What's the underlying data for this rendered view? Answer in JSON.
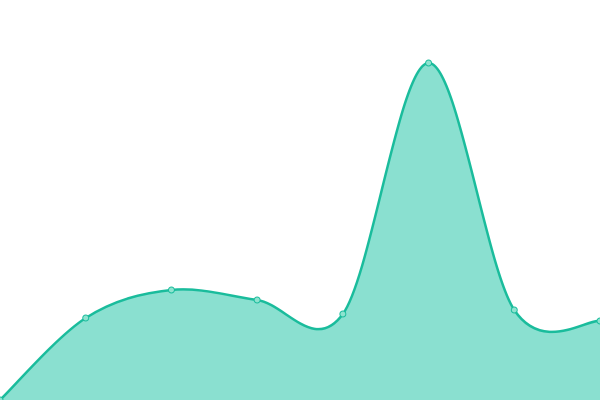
{
  "chart_data": {
    "type": "area",
    "x": [
      0,
      1,
      2,
      3,
      4,
      5,
      6,
      7
    ],
    "values": [
      0,
      20.5,
      27.5,
      25,
      21.5,
      84.25,
      22.5,
      19.75
    ],
    "ylim": [
      0,
      100
    ],
    "grid": false,
    "smooth": true,
    "colors": {
      "line": "#1abc9c",
      "fill": "#8ae0d0",
      "point_fill": "#8ee3cf"
    }
  }
}
